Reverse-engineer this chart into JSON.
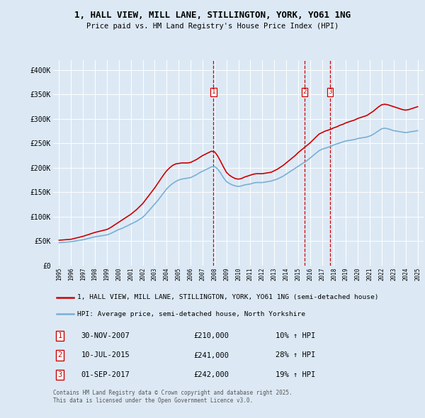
{
  "title": "1, HALL VIEW, MILL LANE, STILLINGTON, YORK, YO61 1NG",
  "subtitle": "Price paid vs. HM Land Registry's House Price Index (HPI)",
  "legend_property": "1, HALL VIEW, MILL LANE, STILLINGTON, YORK, YO61 1NG (semi-detached house)",
  "legend_hpi": "HPI: Average price, semi-detached house, North Yorkshire",
  "footer": "Contains HM Land Registry data © Crown copyright and database right 2025.\nThis data is licensed under the Open Government Licence v3.0.",
  "sale_color": "#cc0000",
  "hpi_color": "#7aafd4",
  "background_color": "#dce9f5",
  "plot_bg_color": "#dce9f5",
  "grid_color": "#ffffff",
  "ylim": [
    0,
    420000
  ],
  "yticks": [
    0,
    50000,
    100000,
    150000,
    200000,
    250000,
    300000,
    350000,
    400000
  ],
  "ytick_labels": [
    "£0",
    "£50K",
    "£100K",
    "£150K",
    "£200K",
    "£250K",
    "£300K",
    "£350K",
    "£400K"
  ],
  "transactions": [
    {
      "label": "1",
      "date": "30-NOV-2007",
      "price": 210000,
      "hpi_pct": "10%",
      "x_year": 2007.92
    },
    {
      "label": "2",
      "date": "10-JUL-2015",
      "price": 241000,
      "hpi_pct": "28%",
      "x_year": 2015.53
    },
    {
      "label": "3",
      "date": "01-SEP-2017",
      "price": 242000,
      "hpi_pct": "19%",
      "x_year": 2017.67
    }
  ],
  "xlim_start": 1994.5,
  "xlim_end": 2025.5,
  "xticks": [
    1995,
    1996,
    1997,
    1998,
    1999,
    2000,
    2001,
    2002,
    2003,
    2004,
    2005,
    2006,
    2007,
    2008,
    2009,
    2010,
    2011,
    2012,
    2013,
    2014,
    2015,
    2016,
    2017,
    2018,
    2019,
    2020,
    2021,
    2022,
    2023,
    2024,
    2025
  ],
  "hpi_data": {
    "years": [
      1995.0,
      1995.25,
      1995.5,
      1995.75,
      1996.0,
      1996.25,
      1996.5,
      1996.75,
      1997.0,
      1997.25,
      1997.5,
      1997.75,
      1998.0,
      1998.25,
      1998.5,
      1998.75,
      1999.0,
      1999.25,
      1999.5,
      1999.75,
      2000.0,
      2000.25,
      2000.5,
      2000.75,
      2001.0,
      2001.25,
      2001.5,
      2001.75,
      2002.0,
      2002.25,
      2002.5,
      2002.75,
      2003.0,
      2003.25,
      2003.5,
      2003.75,
      2004.0,
      2004.25,
      2004.5,
      2004.75,
      2005.0,
      2005.25,
      2005.5,
      2005.75,
      2006.0,
      2006.25,
      2006.5,
      2006.75,
      2007.0,
      2007.25,
      2007.5,
      2007.75,
      2008.0,
      2008.25,
      2008.5,
      2008.75,
      2009.0,
      2009.25,
      2009.5,
      2009.75,
      2010.0,
      2010.25,
      2010.5,
      2010.75,
      2011.0,
      2011.25,
      2011.5,
      2011.75,
      2012.0,
      2012.25,
      2012.5,
      2012.75,
      2013.0,
      2013.25,
      2013.5,
      2013.75,
      2014.0,
      2014.25,
      2014.5,
      2014.75,
      2015.0,
      2015.25,
      2015.5,
      2015.75,
      2016.0,
      2016.25,
      2016.5,
      2016.75,
      2017.0,
      2017.25,
      2017.5,
      2017.75,
      2018.0,
      2018.25,
      2018.5,
      2018.75,
      2019.0,
      2019.25,
      2019.5,
      2019.75,
      2020.0,
      2020.25,
      2020.5,
      2020.75,
      2021.0,
      2021.25,
      2021.5,
      2021.75,
      2022.0,
      2022.25,
      2022.5,
      2022.75,
      2023.0,
      2023.25,
      2023.5,
      2023.75,
      2024.0,
      2024.25,
      2024.5,
      2024.75,
      2025.0
    ],
    "values": [
      47000,
      47500,
      48000,
      48500,
      49000,
      50000,
      51000,
      52000,
      53000,
      54500,
      56000,
      57500,
      59000,
      60000,
      61000,
      62000,
      63000,
      65000,
      68000,
      71000,
      74000,
      76000,
      79000,
      82000,
      85000,
      88000,
      91000,
      95000,
      99000,
      105000,
      112000,
      119000,
      126000,
      133000,
      141000,
      149000,
      157000,
      163000,
      168000,
      172000,
      175000,
      177000,
      178000,
      179000,
      180000,
      183000,
      186000,
      190000,
      193000,
      196000,
      199000,
      202000,
      203000,
      198000,
      190000,
      180000,
      172000,
      168000,
      165000,
      163000,
      162000,
      163000,
      165000,
      166000,
      167000,
      169000,
      170000,
      170000,
      170000,
      171000,
      172000,
      173000,
      175000,
      177000,
      180000,
      183000,
      187000,
      191000,
      195000,
      199000,
      203000,
      207000,
      211000,
      215000,
      220000,
      225000,
      230000,
      235000,
      238000,
      240000,
      242000,
      244000,
      247000,
      249000,
      251000,
      253000,
      255000,
      256000,
      257000,
      258000,
      260000,
      261000,
      262000,
      263000,
      265000,
      268000,
      272000,
      276000,
      280000,
      281000,
      280000,
      278000,
      276000,
      275000,
      274000,
      273000,
      272000,
      273000,
      274000,
      275000,
      276000
    ]
  },
  "property_data": {
    "years": [
      1995.0,
      1995.25,
      1995.5,
      1995.75,
      1996.0,
      1996.25,
      1996.5,
      1996.75,
      1997.0,
      1997.25,
      1997.5,
      1997.75,
      1998.0,
      1998.25,
      1998.5,
      1998.75,
      1999.0,
      1999.25,
      1999.5,
      1999.75,
      2000.0,
      2000.25,
      2000.5,
      2000.75,
      2001.0,
      2001.25,
      2001.5,
      2001.75,
      2002.0,
      2002.25,
      2002.5,
      2002.75,
      2003.0,
      2003.25,
      2003.5,
      2003.75,
      2004.0,
      2004.25,
      2004.5,
      2004.75,
      2005.0,
      2005.25,
      2005.5,
      2005.75,
      2006.0,
      2006.25,
      2006.5,
      2006.75,
      2007.0,
      2007.25,
      2007.5,
      2007.75,
      2008.0,
      2008.25,
      2008.5,
      2008.75,
      2009.0,
      2009.25,
      2009.5,
      2009.75,
      2010.0,
      2010.25,
      2010.5,
      2010.75,
      2011.0,
      2011.25,
      2011.5,
      2011.75,
      2012.0,
      2012.25,
      2012.5,
      2012.75,
      2013.0,
      2013.25,
      2013.5,
      2013.75,
      2014.0,
      2014.25,
      2014.5,
      2014.75,
      2015.0,
      2015.25,
      2015.5,
      2015.75,
      2016.0,
      2016.25,
      2016.5,
      2016.75,
      2017.0,
      2017.25,
      2017.5,
      2017.75,
      2018.0,
      2018.25,
      2018.5,
      2018.75,
      2019.0,
      2019.25,
      2019.5,
      2019.75,
      2020.0,
      2020.25,
      2020.5,
      2020.75,
      2021.0,
      2021.25,
      2021.5,
      2021.75,
      2022.0,
      2022.25,
      2022.5,
      2022.75,
      2023.0,
      2023.25,
      2023.5,
      2023.75,
      2024.0,
      2024.25,
      2024.5,
      2024.75,
      2025.0
    ],
    "values": [
      52000,
      52500,
      53000,
      53500,
      54000,
      55500,
      57000,
      58500,
      60000,
      62000,
      64000,
      66000,
      68000,
      69500,
      71000,
      72500,
      74000,
      77000,
      81000,
      85000,
      89000,
      93000,
      97000,
      101000,
      105000,
      110000,
      115000,
      121000,
      127000,
      135000,
      143000,
      151000,
      159000,
      168000,
      177000,
      186000,
      194000,
      200000,
      205000,
      208000,
      209000,
      210000,
      210000,
      210000,
      211000,
      214000,
      217000,
      221000,
      225000,
      228000,
      231000,
      234000,
      233000,
      225000,
      214000,
      202000,
      191000,
      185000,
      181000,
      178000,
      177000,
      178000,
      181000,
      183000,
      185000,
      187000,
      188000,
      188000,
      188000,
      189000,
      190000,
      191000,
      194000,
      197000,
      201000,
      205000,
      210000,
      215000,
      220000,
      225000,
      231000,
      236000,
      241000,
      246000,
      251000,
      257000,
      263000,
      269000,
      272000,
      275000,
      277000,
      279000,
      282000,
      284000,
      287000,
      289000,
      292000,
      294000,
      296000,
      298000,
      301000,
      303000,
      305000,
      307000,
      311000,
      315000,
      320000,
      325000,
      329000,
      330000,
      329000,
      327000,
      325000,
      323000,
      321000,
      319000,
      318000,
      319000,
      321000,
      323000,
      325000
    ]
  }
}
